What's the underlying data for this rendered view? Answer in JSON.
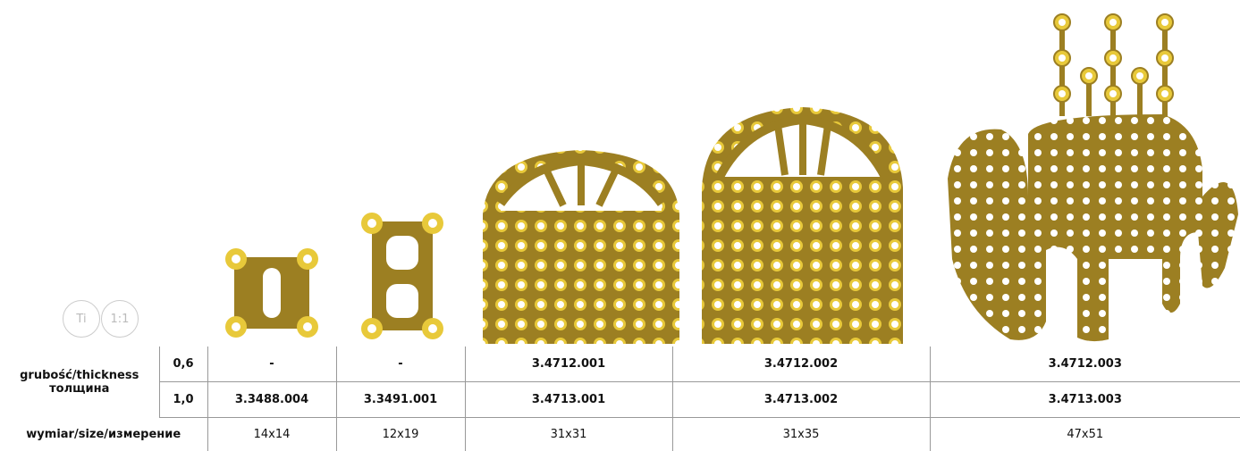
{
  "badges": [
    "Ti",
    "1:1"
  ],
  "table": {
    "thickness_label": [
      "grubość/thickness",
      "толщина"
    ],
    "rows": [
      {
        "thickness": "0,6",
        "codes": [
          "-",
          "-",
          "3.4712.001",
          "3.4712.002",
          "3.4712.003"
        ]
      },
      {
        "thickness": "1,0",
        "codes": [
          "3.3488.004",
          "3.3491.001",
          "3.4713.001",
          "3.4713.002",
          "3.4713.003"
        ]
      }
    ],
    "size_label": "wymiar/size/измерение",
    "sizes": [
      "14x14",
      "12x19",
      "31x31",
      "31x35",
      "47x51"
    ]
  }
}
